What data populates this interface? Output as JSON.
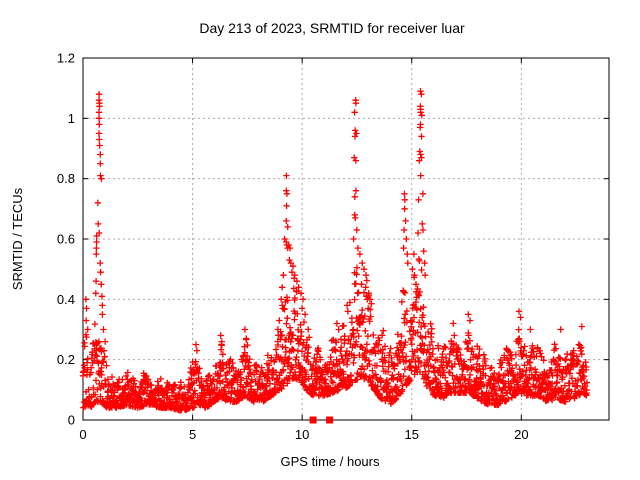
{
  "title": "Day 213 of 2023, SRMTID for receiver luar",
  "chart_data": {
    "type": "scatter",
    "title": "Day 213 of 2023, SRMTID for receiver luar",
    "xlabel": "GPS time / hours",
    "ylabel": "SRMTID / TECUs",
    "xlim": [
      0,
      24
    ],
    "ylim": [
      0,
      1.2
    ],
    "xticks": [
      0,
      5,
      10,
      15,
      20
    ],
    "ytick_labels": [
      "0",
      "0.2",
      "0.4",
      "0.6",
      "0.8",
      "1",
      "1.2"
    ],
    "ytick_values": [
      0,
      0.2,
      0.4,
      0.6,
      0.8,
      1.0,
      1.2
    ],
    "grid": true,
    "legend": "none",
    "marker": "plus",
    "marker_color": "#ff0000",
    "grid_color": "#aaaaaa",
    "border_color": "#000000",
    "data_time_range": [
      0,
      23.0
    ],
    "note": "Dense noisy scatter (~2400 pts). baseline_band nodes give [t_hours, y_min, y_max] envelope of the dense band; spike_points are explicit visible high outlier points [t, y]; axis_squares are filled square markers on the x-axis.",
    "baseline_band": {
      "nodes": [
        [
          0.0,
          0.04,
          0.3
        ],
        [
          0.2,
          0.05,
          0.32
        ],
        [
          0.35,
          0.04,
          0.22
        ],
        [
          0.5,
          0.05,
          0.3
        ],
        [
          0.65,
          0.06,
          0.45
        ],
        [
          0.8,
          0.06,
          0.4
        ],
        [
          0.95,
          0.05,
          0.28
        ],
        [
          1.1,
          0.04,
          0.17
        ],
        [
          1.5,
          0.04,
          0.15
        ],
        [
          2.0,
          0.05,
          0.17
        ],
        [
          2.5,
          0.04,
          0.14
        ],
        [
          3.0,
          0.05,
          0.17
        ],
        [
          3.5,
          0.04,
          0.15
        ],
        [
          4.0,
          0.04,
          0.14
        ],
        [
          4.5,
          0.03,
          0.13
        ],
        [
          5.0,
          0.04,
          0.2
        ],
        [
          5.3,
          0.05,
          0.22
        ],
        [
          5.6,
          0.04,
          0.15
        ],
        [
          6.0,
          0.06,
          0.2
        ],
        [
          6.3,
          0.07,
          0.26
        ],
        [
          6.7,
          0.06,
          0.2
        ],
        [
          7.0,
          0.06,
          0.23
        ],
        [
          7.4,
          0.08,
          0.28
        ],
        [
          7.8,
          0.06,
          0.2
        ],
        [
          8.2,
          0.06,
          0.2
        ],
        [
          8.6,
          0.08,
          0.26
        ],
        [
          9.0,
          0.1,
          0.32
        ],
        [
          9.3,
          0.12,
          0.55
        ],
        [
          9.6,
          0.14,
          0.48
        ],
        [
          9.9,
          0.13,
          0.42
        ],
        [
          10.2,
          0.1,
          0.33
        ],
        [
          10.5,
          0.08,
          0.26
        ],
        [
          11.0,
          0.08,
          0.24
        ],
        [
          11.4,
          0.09,
          0.28
        ],
        [
          11.8,
          0.1,
          0.32
        ],
        [
          12.1,
          0.11,
          0.36
        ],
        [
          12.4,
          0.13,
          0.55
        ],
        [
          12.7,
          0.14,
          0.5
        ],
        [
          13.0,
          0.13,
          0.46
        ],
        [
          13.3,
          0.1,
          0.42
        ],
        [
          13.6,
          0.07,
          0.32
        ],
        [
          14.0,
          0.05,
          0.25
        ],
        [
          14.3,
          0.07,
          0.28
        ],
        [
          14.6,
          0.1,
          0.48
        ],
        [
          14.9,
          0.13,
          0.45
        ],
        [
          15.1,
          0.15,
          0.55
        ],
        [
          15.4,
          0.16,
          0.55
        ],
        [
          15.7,
          0.11,
          0.4
        ],
        [
          16.0,
          0.08,
          0.28
        ],
        [
          16.4,
          0.07,
          0.26
        ],
        [
          16.8,
          0.09,
          0.28
        ],
        [
          17.2,
          0.09,
          0.3
        ],
        [
          17.6,
          0.09,
          0.32
        ],
        [
          18.0,
          0.07,
          0.26
        ],
        [
          18.5,
          0.05,
          0.2
        ],
        [
          19.0,
          0.05,
          0.21
        ],
        [
          19.5,
          0.07,
          0.26
        ],
        [
          19.9,
          0.09,
          0.33
        ],
        [
          20.3,
          0.08,
          0.28
        ],
        [
          20.8,
          0.08,
          0.26
        ],
        [
          21.2,
          0.06,
          0.23
        ],
        [
          21.6,
          0.07,
          0.27
        ],
        [
          22.0,
          0.06,
          0.23
        ],
        [
          22.4,
          0.07,
          0.26
        ],
        [
          22.8,
          0.09,
          0.28
        ],
        [
          23.0,
          0.08,
          0.24
        ]
      ]
    },
    "spike_points": [
      [
        0.15,
        0.4
      ],
      [
        0.17,
        0.37
      ],
      [
        0.13,
        0.33
      ],
      [
        0.2,
        0.3
      ],
      [
        0.62,
        0.55
      ],
      [
        0.63,
        0.57
      ],
      [
        0.64,
        0.59
      ],
      [
        0.62,
        0.61
      ],
      [
        0.58,
        0.42
      ],
      [
        0.6,
        0.46
      ],
      [
        0.73,
        1.08
      ],
      [
        0.74,
        1.06
      ],
      [
        0.73,
        1.05
      ],
      [
        0.75,
        1.04
      ],
      [
        0.74,
        1.02
      ],
      [
        0.75,
        1.0
      ],
      [
        0.76,
        0.98
      ],
      [
        0.74,
        0.95
      ],
      [
        0.76,
        0.93
      ],
      [
        0.75,
        0.91
      ],
      [
        0.78,
        0.88
      ],
      [
        0.77,
        0.85
      ],
      [
        0.8,
        0.81
      ],
      [
        0.85,
        0.8
      ],
      [
        0.7,
        0.72
      ],
      [
        0.69,
        0.65
      ],
      [
        0.72,
        0.62
      ],
      [
        0.79,
        0.52
      ],
      [
        0.81,
        0.49
      ],
      [
        0.83,
        0.45
      ],
      [
        0.86,
        0.41
      ],
      [
        0.88,
        0.38
      ],
      [
        0.9,
        0.35
      ],
      [
        0.95,
        0.3
      ],
      [
        1.0,
        0.26
      ],
      [
        5.15,
        0.25
      ],
      [
        5.2,
        0.23
      ],
      [
        6.3,
        0.28
      ],
      [
        6.35,
        0.26
      ],
      [
        7.4,
        0.3
      ],
      [
        7.45,
        0.27
      ],
      [
        8.9,
        0.3
      ],
      [
        8.95,
        0.33
      ],
      [
        9.3,
        0.81
      ],
      [
        9.27,
        0.76
      ],
      [
        9.29,
        0.75
      ],
      [
        9.31,
        0.71
      ],
      [
        9.28,
        0.66
      ],
      [
        9.35,
        0.64
      ],
      [
        9.21,
        0.6
      ],
      [
        9.26,
        0.59
      ],
      [
        9.31,
        0.58
      ],
      [
        9.38,
        0.58
      ],
      [
        9.44,
        0.57
      ],
      [
        9.34,
        0.57
      ],
      [
        9.42,
        0.53
      ],
      [
        9.5,
        0.52
      ],
      [
        9.58,
        0.51
      ],
      [
        9.55,
        0.49
      ],
      [
        9.68,
        0.48
      ],
      [
        9.63,
        0.47
      ],
      [
        9.74,
        0.46
      ],
      [
        9.15,
        0.48
      ],
      [
        9.1,
        0.44
      ],
      [
        9.05,
        0.4
      ],
      [
        9.85,
        0.44
      ],
      [
        9.95,
        0.42
      ],
      [
        10.05,
        0.4
      ],
      [
        10.0,
        0.37
      ],
      [
        10.15,
        0.35
      ],
      [
        11.6,
        0.32
      ],
      [
        11.65,
        0.3
      ],
      [
        12.05,
        0.38
      ],
      [
        12.1,
        0.36
      ],
      [
        12.42,
        1.06
      ],
      [
        12.45,
        1.05
      ],
      [
        12.41,
        1.02
      ],
      [
        12.44,
        0.96
      ],
      [
        12.47,
        0.95
      ],
      [
        12.4,
        0.94
      ],
      [
        12.38,
        0.87
      ],
      [
        12.43,
        0.86
      ],
      [
        12.46,
        0.76
      ],
      [
        12.4,
        0.74
      ],
      [
        12.39,
        0.68
      ],
      [
        12.44,
        0.67
      ],
      [
        12.48,
        0.63
      ],
      [
        12.36,
        0.6
      ],
      [
        12.55,
        0.57
      ],
      [
        12.62,
        0.55
      ],
      [
        12.72,
        0.52
      ],
      [
        12.82,
        0.5
      ],
      [
        12.92,
        0.48
      ],
      [
        12.7,
        0.45
      ],
      [
        12.88,
        0.44
      ],
      [
        13.02,
        0.42
      ],
      [
        13.1,
        0.4
      ],
      [
        14.65,
        0.75
      ],
      [
        14.7,
        0.73
      ],
      [
        14.68,
        0.7
      ],
      [
        14.72,
        0.66
      ],
      [
        14.66,
        0.63
      ],
      [
        14.75,
        0.6
      ],
      [
        14.62,
        0.57
      ],
      [
        14.78,
        0.55
      ],
      [
        14.82,
        0.52
      ],
      [
        15.38,
        1.09
      ],
      [
        15.44,
        1.08
      ],
      [
        15.4,
        1.04
      ],
      [
        15.42,
        1.03
      ],
      [
        15.39,
        1.02
      ],
      [
        15.45,
        1.01
      ],
      [
        15.41,
        0.98
      ],
      [
        15.37,
        0.97
      ],
      [
        15.43,
        0.94
      ],
      [
        15.35,
        0.89
      ],
      [
        15.4,
        0.88
      ],
      [
        15.46,
        0.87
      ],
      [
        15.36,
        0.86
      ],
      [
        15.42,
        0.81
      ],
      [
        15.5,
        0.75
      ],
      [
        15.33,
        0.73
      ],
      [
        15.48,
        0.65
      ],
      [
        15.52,
        0.63
      ],
      [
        15.3,
        0.62
      ],
      [
        15.55,
        0.56
      ],
      [
        15.08,
        0.55
      ],
      [
        15.04,
        0.5
      ],
      [
        15.14,
        0.48
      ],
      [
        15.2,
        0.45
      ],
      [
        15.58,
        0.52
      ],
      [
        15.62,
        0.48
      ],
      [
        16.9,
        0.32
      ],
      [
        17.58,
        0.35
      ],
      [
        17.64,
        0.33
      ],
      [
        19.9,
        0.36
      ],
      [
        19.95,
        0.34
      ],
      [
        20.4,
        0.3
      ],
      [
        21.8,
        0.3
      ],
      [
        22.75,
        0.31
      ]
    ],
    "axis_squares": {
      "marker": "filled-square",
      "points": [
        [
          10.5,
          0
        ],
        [
          11.25,
          0
        ]
      ]
    }
  }
}
